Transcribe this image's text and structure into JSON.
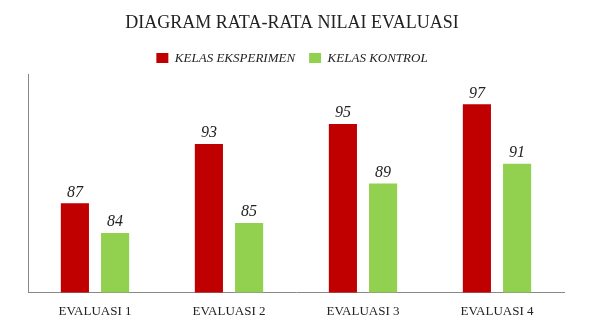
{
  "chart_data": {
    "type": "bar",
    "title": "DIAGRAM RATA-RATA NILAI EVALUASI",
    "categories": [
      "EVALUASI 1",
      "EVALUASI 2",
      "EVALUASI 3",
      "EVALUASI 4"
    ],
    "series": [
      {
        "name": "KELAS EKSPERIMEN",
        "color": "#c00000",
        "values": [
          87,
          93,
          95,
          97
        ]
      },
      {
        "name": "KELAS KONTROL",
        "color": "#92d050",
        "values": [
          84,
          85,
          89,
          91
        ]
      }
    ],
    "ylim": [
      78,
      100
    ],
    "grid": false,
    "legend": "top",
    "data_labels": true,
    "tick_labels": "x"
  }
}
